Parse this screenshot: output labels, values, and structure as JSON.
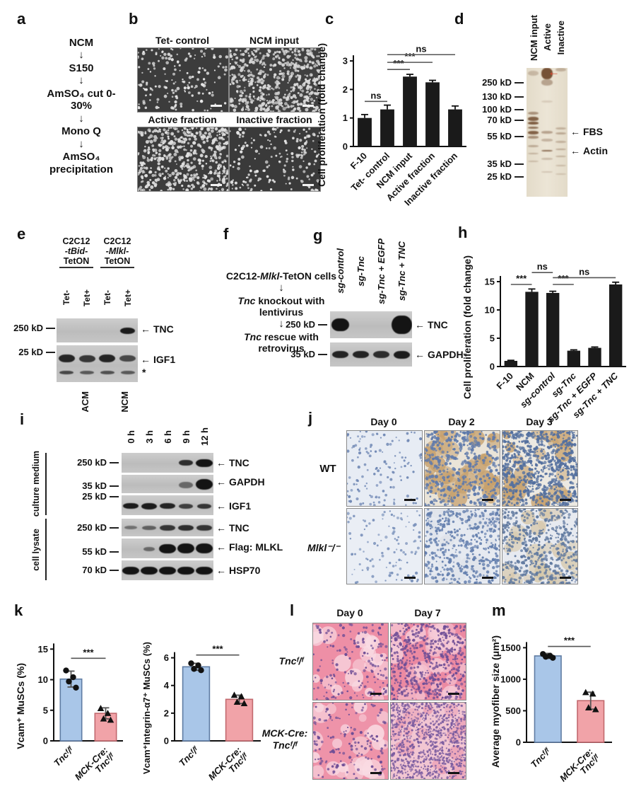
{
  "panels": {
    "a": {
      "label": "a",
      "steps": [
        "NCM",
        "S150",
        "AmSO₄ cut 0-30%",
        "Mono Q",
        "AmSO₄ precipitation"
      ],
      "arrow": "↓"
    },
    "b": {
      "label": "b",
      "images": [
        {
          "title": "Tet- control"
        },
        {
          "title": "NCM input"
        },
        {
          "title": "Active fraction"
        },
        {
          "title": "Inactive fraction"
        }
      ]
    },
    "c": {
      "label": "c"
    },
    "d": {
      "label": "d",
      "lanes": [
        "NCM input",
        "Active",
        "Inactive"
      ],
      "markers": [
        {
          "t": "250 kD"
        },
        {
          "t": "130 kD"
        },
        {
          "t": "100 kD"
        },
        {
          "t": "70 kD"
        },
        {
          "t": "55 kD"
        },
        {
          "t": "35 kD"
        },
        {
          "t": "25 kD"
        }
      ],
      "arrows": [
        {
          "glyph": "←",
          "t": "FBS"
        },
        {
          "glyph": "←",
          "t": "Actin"
        }
      ],
      "red_arrow": "←",
      "red_color": "#d9442e"
    },
    "e": {
      "label": "e",
      "headers": [
        {
          "l1": "C2C12",
          "l2": "-tBid-",
          "l3": "TetON"
        },
        {
          "l1": "C2C12",
          "l2": "-Mlkl-",
          "l3": "TetON"
        }
      ],
      "lanes": [
        "Tet-",
        "Tet+",
        "Tet-",
        "Tet+"
      ],
      "markers": [
        {
          "t": "250 kD"
        },
        {
          "t": "25 kD"
        }
      ],
      "arrows": [
        {
          "glyph": "←",
          "t": "TNC"
        },
        {
          "glyph": "←",
          "t": "IGF1"
        }
      ],
      "asterisk": "*",
      "bottom": [
        "ACM",
        "NCM"
      ]
    },
    "f": {
      "label": "f",
      "line1": {
        "s1": "C2C12-",
        "s2": "Mlkl",
        "s3": "-TetON cells"
      },
      "line2": {
        "s1": "Tnc",
        "s2": " knockout with lentivirus"
      },
      "line3": {
        "s1": "Tnc",
        "s2": " rescue with retrovirus"
      },
      "arrow": "↓"
    },
    "g": {
      "label": "g",
      "lanes": [
        "sg-control",
        "sg-Tnc",
        "sg-Tnc + EGFP",
        "sg-Tnc + TNC"
      ],
      "markers": [
        {
          "t": "250 kD"
        },
        {
          "t": "35 kD"
        }
      ],
      "arrows": [
        {
          "glyph": "←",
          "t": "TNC"
        },
        {
          "glyph": "←",
          "t": "GAPDH"
        }
      ]
    },
    "h": {
      "label": "h"
    },
    "i": {
      "label": "i",
      "groups": [
        "culture medium",
        "cell lysate"
      ],
      "lanes": [
        "0 h",
        "3 h",
        "6 h",
        "9 h",
        "12 h"
      ],
      "rows": [
        {
          "marker": "250 kD",
          "glyph": "←",
          "target": "TNC"
        },
        {
          "marker": "35 kD",
          "glyph": "←",
          "target": "GAPDH"
        },
        {
          "marker": "25 kD",
          "glyph": "←",
          "target": "IGF1"
        },
        {
          "marker": "250 kD",
          "glyph": "←",
          "target": "TNC"
        },
        {
          "marker": "55 kD",
          "glyph": "←",
          "target": "Flag: MLKL"
        },
        {
          "marker": "70 kD",
          "glyph": "←",
          "target": "HSP70"
        }
      ]
    },
    "j": {
      "label": "j",
      "cols": [
        "Day 0",
        "Day 2",
        "Day 3"
      ],
      "rows": [
        "WT",
        "Mlkl⁻/⁻"
      ]
    },
    "k": {
      "label": "k"
    },
    "l": {
      "label": "l",
      "cols": [
        "Day 0",
        "Day 7"
      ],
      "row1": "Tncᶠ/ᶠ",
      "row2a": "MCK-Cre:",
      "row2b": "Tncᶠ/ᶠ"
    },
    "m": {
      "label": "m"
    }
  },
  "chart_data": [
    {
      "id": "c",
      "type": "bar",
      "title": "",
      "ylabel": "Cell proliferation (fold change)",
      "categories": [
        "F-10",
        "Tet- control",
        "NCM input",
        "Active fraction",
        "Inactive fraction"
      ],
      "values": [
        1.0,
        1.3,
        2.45,
        2.25,
        1.3
      ],
      "errors": [
        0.12,
        0.15,
        0.08,
        0.07,
        0.12
      ],
      "cat_italics": [
        false,
        false,
        false,
        false,
        false
      ],
      "bar_color": "#1a1a1a",
      "ylim": [
        0,
        3.4
      ],
      "yticks": [
        0,
        1,
        2,
        3
      ],
      "sig": [
        {
          "a": 0,
          "b": 1,
          "label": "ns",
          "y": 1.58
        },
        {
          "a": 1,
          "b": 2,
          "label": "***",
          "y": 2.7
        },
        {
          "a": 1,
          "b": 3,
          "label": "***",
          "y": 2.95
        },
        {
          "a": 1,
          "b": 4,
          "label": "ns",
          "y": 3.22
        }
      ]
    },
    {
      "id": "h",
      "type": "bar",
      "title": "",
      "ylabel": "Cell proliferation (fold change)",
      "categories": [
        "F-10",
        "NCM",
        "sg-control",
        "sg-Tnc",
        "sg-Tnc + EGFP",
        "sg-Tnc + TNC"
      ],
      "values": [
        1.0,
        13.2,
        13.0,
        2.8,
        3.3,
        14.5
      ],
      "errors": [
        0.1,
        0.5,
        0.3,
        0.15,
        0.15,
        0.4
      ],
      "cat_italics": [
        false,
        false,
        true,
        true,
        true,
        true
      ],
      "bar_color": "#1a1a1a",
      "ylim": [
        0,
        17.5
      ],
      "yticks": [
        0,
        5,
        10,
        15
      ],
      "sig": [
        {
          "a": 0,
          "b": 1,
          "label": "***",
          "y": 14.5
        },
        {
          "a": 1,
          "b": 2,
          "label": "ns",
          "y": 16.6
        },
        {
          "a": 2,
          "b": 3,
          "label": "***",
          "y": 14.5
        },
        {
          "a": 2,
          "b": 5,
          "label": "ns",
          "y": 15.7
        }
      ]
    },
    {
      "id": "k1",
      "type": "bar",
      "title": "",
      "ylabel": "Vcam⁺ MuSCs (%)",
      "categories": [
        "Tncᶠ/ᶠ",
        "MCK-Cre:\nTncᶠ/ᶠ"
      ],
      "values": [
        10.1,
        4.5
      ],
      "errors": [
        1.3,
        0.9
      ],
      "points": [
        [
          11.5,
          10.4,
          9.7,
          8.7
        ],
        [
          5.3,
          4.5,
          3.6,
          3.4
        ]
      ],
      "point_shapes": [
        "circle",
        "triangle"
      ],
      "cat_italics": [
        true,
        true
      ],
      "bar_colors": [
        "#a9c6e8",
        "#f1a3a8"
      ],
      "bar_strokes": [
        "#5f7ca3",
        "#c2696e"
      ],
      "ylim": [
        0,
        15.5
      ],
      "yticks": [
        0,
        5,
        10,
        15
      ],
      "sig": [
        {
          "a": 0,
          "b": 1,
          "label": "***",
          "y": 13.5
        }
      ]
    },
    {
      "id": "k2",
      "type": "bar",
      "title": "",
      "ylabel": "Vcam⁺Integrin-α7⁺ MuSCs (%)",
      "categories": [
        "Tncᶠ/ᶠ",
        "MCK-Cre:\nTncᶠ/ᶠ"
      ],
      "values": [
        5.35,
        3.0
      ],
      "errors": [
        0.25,
        0.3
      ],
      "points": [
        [
          5.6,
          5.45,
          5.2,
          5.1
        ],
        [
          3.3,
          3.2,
          2.8,
          2.7
        ]
      ],
      "point_shapes": [
        "circle",
        "triangle"
      ],
      "cat_italics": [
        true,
        true
      ],
      "bar_colors": [
        "#a9c6e8",
        "#f1a3a8"
      ],
      "bar_strokes": [
        "#5f7ca3",
        "#c2696e"
      ],
      "ylim": [
        0,
        6.9
      ],
      "yticks": [
        0,
        2,
        4,
        6
      ],
      "sig": [
        {
          "a": 0,
          "b": 1,
          "label": "***",
          "y": 6.2
        }
      ]
    },
    {
      "id": "m",
      "type": "bar",
      "title": "",
      "ylabel": "Average myofiber size (μm²)",
      "categories": [
        "Tncᶠ/ᶠ",
        "MCK-Cre:\nTncᶠ/ᶠ"
      ],
      "values": [
        1370,
        660
      ],
      "errors": [
        40,
        135
      ],
      "points": [
        [
          1400,
          1372,
          1356,
          1340
        ],
        [
          790,
          768,
          548,
          520
        ]
      ],
      "point_shapes": [
        "circle",
        "triangle"
      ],
      "cat_italics": [
        true,
        true
      ],
      "bar_colors": [
        "#a9c6e8",
        "#f1a3a8"
      ],
      "bar_strokes": [
        "#5f7ca3",
        "#c2696e"
      ],
      "ylim": [
        0,
        1650
      ],
      "yticks": [
        0,
        500,
        1000,
        1500
      ],
      "sig": [
        {
          "a": 0,
          "b": 1,
          "label": "***",
          "y": 1520
        }
      ]
    }
  ],
  "blots": {
    "e1": {
      "lanes": 4,
      "bands": [
        [
          4,
          0.5,
          0.75,
          9,
          0.95
        ]
      ]
    },
    "e2": {
      "lanes": 4,
      "bands": [
        [
          1,
          0.36,
          0.8,
          11,
          0.9
        ],
        [
          2,
          0.36,
          0.8,
          10,
          0.8
        ],
        [
          3,
          0.36,
          0.8,
          11,
          0.9
        ],
        [
          4,
          0.36,
          0.8,
          9,
          0.7
        ],
        [
          1,
          0.74,
          0.7,
          5,
          0.7
        ],
        [
          2,
          0.74,
          0.7,
          5,
          0.6
        ],
        [
          3,
          0.74,
          0.7,
          5,
          0.65
        ],
        [
          4,
          0.74,
          0.7,
          5,
          0.6
        ]
      ]
    },
    "g1": {
      "lanes": 4,
      "bands": [
        [
          1,
          0.5,
          0.85,
          18,
          1
        ],
        [
          4,
          0.5,
          0.98,
          26,
          1
        ]
      ]
    },
    "g2": {
      "lanes": 4,
      "bands": [
        [
          1,
          0.5,
          0.8,
          10,
          0.9
        ],
        [
          2,
          0.5,
          0.8,
          10,
          0.9
        ],
        [
          3,
          0.5,
          0.8,
          10,
          0.85
        ],
        [
          4,
          0.5,
          0.8,
          11,
          0.95
        ]
      ]
    },
    "i1": {
      "lanes": 5,
      "bands": [
        [
          4,
          0.5,
          0.75,
          8,
          0.85
        ],
        [
          5,
          0.5,
          0.9,
          11,
          1
        ]
      ]
    },
    "i2": {
      "lanes": 5,
      "bands": [
        [
          4,
          0.55,
          0.75,
          9,
          0.5
        ],
        [
          5,
          0.5,
          0.95,
          15,
          1
        ]
      ]
    },
    "i3": {
      "lanes": 5,
      "bands": [
        [
          1,
          0.55,
          0.85,
          8,
          0.95
        ],
        [
          2,
          0.55,
          0.85,
          9,
          0.95
        ],
        [
          3,
          0.55,
          0.85,
          8,
          0.9
        ],
        [
          4,
          0.55,
          0.8,
          7,
          0.75
        ],
        [
          5,
          0.55,
          0.8,
          7,
          0.8
        ]
      ]
    },
    "i4": {
      "lanes": 5,
      "bands": [
        [
          1,
          0.5,
          0.7,
          5,
          0.45
        ],
        [
          2,
          0.5,
          0.75,
          6,
          0.55
        ],
        [
          3,
          0.5,
          0.85,
          8,
          0.8
        ],
        [
          4,
          0.5,
          0.85,
          8,
          0.85
        ],
        [
          5,
          0.5,
          0.85,
          8,
          0.8
        ]
      ]
    },
    "i5": {
      "lanes": 5,
      "bands": [
        [
          2,
          0.55,
          0.65,
          6,
          0.5
        ],
        [
          3,
          0.5,
          0.9,
          13,
          1
        ],
        [
          4,
          0.5,
          0.95,
          14,
          1
        ],
        [
          5,
          0.5,
          0.95,
          14,
          1
        ]
      ]
    },
    "i6": {
      "lanes": 5,
      "bands": [
        [
          1,
          0.5,
          0.92,
          11,
          1
        ],
        [
          2,
          0.5,
          0.92,
          11,
          1
        ],
        [
          3,
          0.5,
          0.92,
          11,
          1
        ],
        [
          4,
          0.5,
          0.92,
          11,
          1
        ],
        [
          5,
          0.5,
          0.92,
          11,
          1
        ]
      ]
    }
  },
  "gel": {
    "color": "#6a4326",
    "lanes": [
      {
        "smudges": [
          [
            0.02,
            0.04,
            0.25
          ],
          [
            0.34,
            0.025,
            0.5
          ],
          [
            0.38,
            0.03,
            0.8
          ],
          [
            0.42,
            0.02,
            0.85
          ],
          [
            0.455,
            0.02,
            0.7
          ],
          [
            0.49,
            0.025,
            0.8
          ],
          [
            0.53,
            0.02,
            0.5
          ],
          [
            0.6,
            0.015,
            0.35
          ],
          [
            0.66,
            0.012,
            0.3
          ],
          [
            0.72,
            0.012,
            0.25
          ]
        ]
      },
      {
        "smudges": [
          [
            0.0,
            0.09,
            0.9
          ],
          [
            0.09,
            0.05,
            0.4
          ],
          [
            0.25,
            0.02,
            0.15
          ],
          [
            0.49,
            0.02,
            0.4
          ],
          [
            0.55,
            0.02,
            0.3
          ],
          [
            0.635,
            0.015,
            0.75
          ],
          [
            0.7,
            0.015,
            0.25
          ],
          [
            0.8,
            0.01,
            0.2
          ]
        ]
      },
      {
        "smudges": [
          [
            0.0,
            0.03,
            0.3
          ],
          [
            0.46,
            0.018,
            0.3
          ],
          [
            0.5,
            0.018,
            0.35
          ],
          [
            0.565,
            0.015,
            0.3
          ],
          [
            0.625,
            0.015,
            0.35
          ],
          [
            0.68,
            0.015,
            0.3
          ],
          [
            0.75,
            0.012,
            0.25
          ],
          [
            0.82,
            0.01,
            0.2
          ]
        ]
      }
    ]
  },
  "micro": {
    "b": [
      {
        "bg": "#3c3c3c",
        "dot": "#e6e6e6",
        "n": 170,
        "rmin": 1,
        "rmax": 2.4,
        "blobn": 0,
        "blob": "#555555"
      },
      {
        "bg": "#404040",
        "dot": "#d9d9d9",
        "n": 560,
        "rmin": 1,
        "rmax": 2.6,
        "blobn": 0,
        "blob": "#555555"
      },
      {
        "bg": "#3c3c3c",
        "dot": "#e0e0e0",
        "n": 500,
        "rmin": 1,
        "rmax": 2.6,
        "blobn": 0,
        "blob": "#555555"
      },
      {
        "bg": "#3a3a3a",
        "dot": "#e6e6e6",
        "n": 190,
        "rmin": 1,
        "rmax": 2.4,
        "blobn": 0,
        "blob": "#555555"
      }
    ],
    "j": [
      {
        "bg": "#e7ecf4",
        "dot": "#7189b5",
        "n": 130,
        "rmin": 1,
        "rmax": 2.2,
        "blobn": 0,
        "blob": "#c9a878"
      },
      {
        "bg": "#eae4d8",
        "dot": "#5f7aab",
        "n": 420,
        "rmin": 1,
        "rmax": 2.6,
        "blobn": 42,
        "blob": "#c6a06c"
      },
      {
        "bg": "#ece9e2",
        "dot": "#54709f",
        "n": 780,
        "rmin": 1,
        "rmax": 2.4,
        "blobn": 26,
        "blob": "#c9a470"
      },
      {
        "bg": "#eaeef5",
        "dot": "#7b92bb",
        "n": 110,
        "rmin": 1,
        "rmax": 2.2,
        "blobn": 0,
        "blob": "#ccd4e2"
      },
      {
        "bg": "#e6eaf1",
        "dot": "#647fae",
        "n": 430,
        "rmin": 1,
        "rmax": 2.4,
        "blobn": 30,
        "blob": "#dfe3ea"
      },
      {
        "bg": "#e7eaf0",
        "dot": "#60799f",
        "n": 520,
        "rmin": 1,
        "rmax": 2.4,
        "blobn": 24,
        "blob": "#d6c7a9"
      }
    ],
    "l": [
      {
        "bg": "#ee8fa6",
        "dot": "#6f4e96",
        "n": 160,
        "rmin": 1,
        "rmax": 2.2,
        "blobn": 22,
        "blob": "#f9dce4"
      },
      {
        "bg": "#ec8aa2",
        "dot": "#6f4e96",
        "n": 520,
        "rmin": 1,
        "rmax": 2.2,
        "blobn": 34,
        "blob": "#f6ccd8"
      },
      {
        "bg": "#ee93a9",
        "dot": "#6f4e96",
        "n": 150,
        "rmin": 1,
        "rmax": 2.2,
        "blobn": 26,
        "blob": "#f9dce4"
      },
      {
        "bg": "#f2c6d2",
        "dot": "#7b5ca0",
        "n": 900,
        "rmin": 0.8,
        "rmax": 1.8,
        "blobn": 18,
        "blob": "#eb9fb4"
      }
    ]
  }
}
